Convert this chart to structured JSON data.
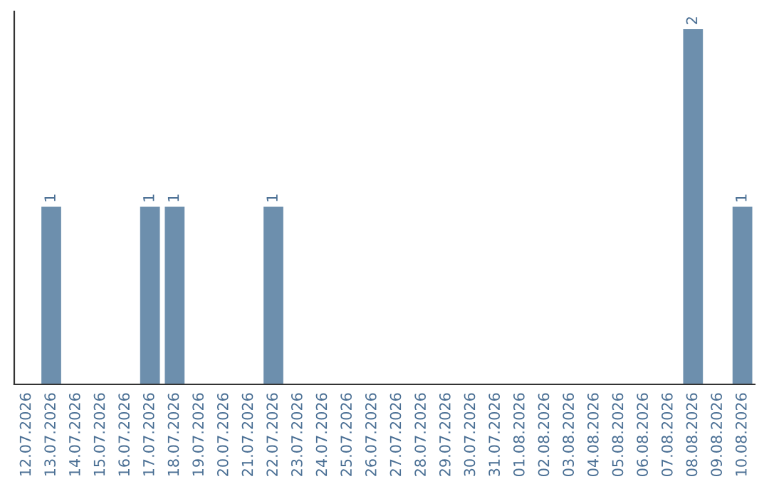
{
  "chart_data": {
    "type": "bar",
    "categories": [
      "12.07.2026",
      "13.07.2026",
      "14.07.2026",
      "15.07.2026",
      "16.07.2026",
      "17.07.2026",
      "18.07.2026",
      "19.07.2026",
      "20.07.2026",
      "21.07.2026",
      "22.07.2026",
      "23.07.2026",
      "24.07.2026",
      "25.07.2026",
      "26.07.2026",
      "27.07.2026",
      "28.07.2026",
      "29.07.2026",
      "30.07.2026",
      "31.07.2026",
      "01.08.2026",
      "02.08.2026",
      "03.08.2026",
      "04.08.2026",
      "05.08.2026",
      "06.08.2026",
      "07.08.2026",
      "08.08.2026",
      "09.08.2026",
      "10.08.2026"
    ],
    "values": [
      0,
      1,
      0,
      0,
      0,
      1,
      1,
      0,
      0,
      0,
      1,
      0,
      0,
      0,
      0,
      0,
      0,
      0,
      0,
      0,
      0,
      0,
      0,
      0,
      0,
      0,
      0,
      2,
      0,
      1
    ],
    "value_labels": [
      null,
      "1",
      null,
      null,
      null,
      "1",
      "1",
      null,
      null,
      null,
      "1",
      null,
      null,
      null,
      null,
      null,
      null,
      null,
      null,
      null,
      null,
      null,
      null,
      null,
      null,
      null,
      null,
      "2",
      null,
      "1"
    ],
    "color": "#6d8fad",
    "tick_labels": "x",
    "grid": false,
    "legend": false
  }
}
